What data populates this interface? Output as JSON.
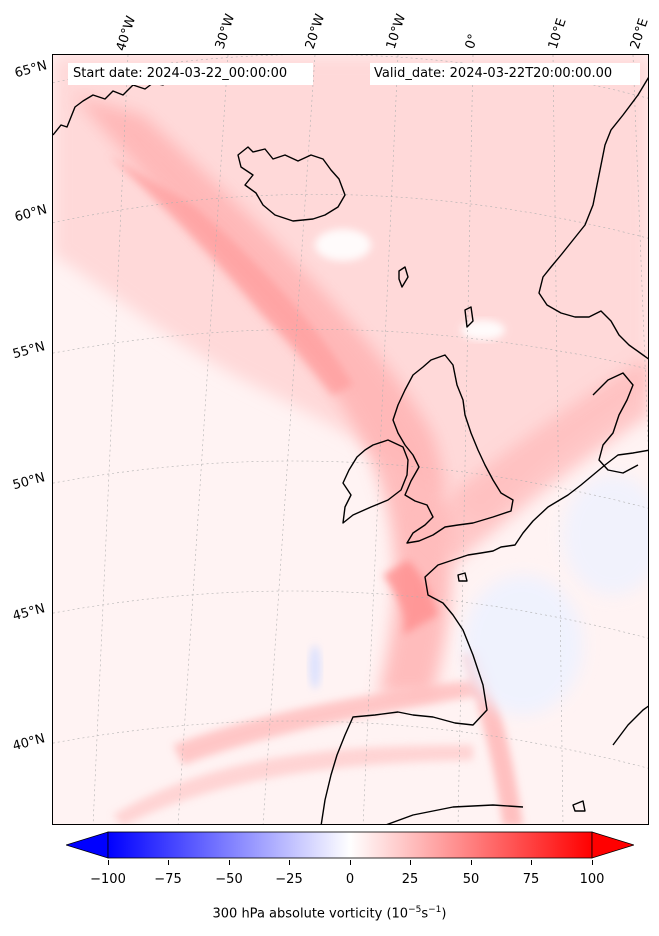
{
  "header": {
    "start_date": "Start date: 2024-03-22_00:00:00",
    "valid_date": "Valid_date: 2024-03-22T20:00:00.00"
  },
  "map": {
    "longitude_labels": [
      "40°W",
      "30°W",
      "20°W",
      "10°W",
      "0°",
      "10°E",
      "20°E"
    ],
    "latitude_labels": [
      "65°N",
      "60°N",
      "55°N",
      "50°N",
      "45°N",
      "40°N"
    ],
    "coastline_color": "#000000",
    "gridline_color": "#b0b0b0"
  },
  "colorbar": {
    "ticks": [
      "−100",
      "−75",
      "−50",
      "−25",
      "0",
      "25",
      "50",
      "75",
      "100"
    ],
    "range": [
      -100,
      100
    ],
    "colormap": "bwr",
    "low_color": "#0000ff",
    "mid_color": "#ffffff",
    "high_color": "#ff0000",
    "label_main": "300 hPa absolute vorticity (10",
    "label_exp1": "−5",
    "label_mid": "s",
    "label_exp2": "−1",
    "label_end": ")"
  }
}
